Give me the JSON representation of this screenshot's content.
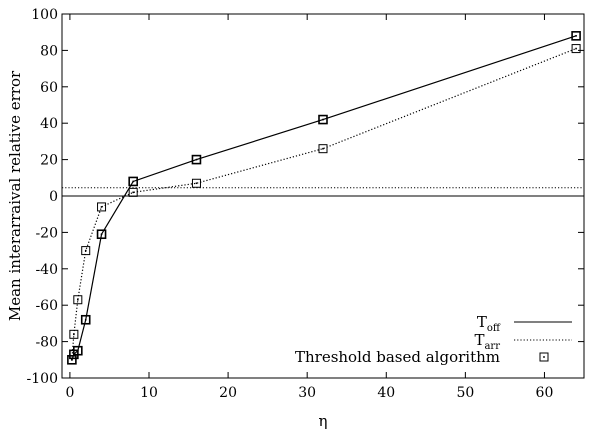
{
  "chart_data": {
    "type": "line",
    "xlabel": "η",
    "ylabel": "Mean interarraival relative error",
    "xlim": [
      -1,
      65
    ],
    "ylim": [
      -100,
      100
    ],
    "xticks": [
      0,
      10,
      20,
      30,
      40,
      50,
      60
    ],
    "yticks": [
      -100,
      -80,
      -60,
      -40,
      -20,
      0,
      20,
      40,
      60,
      80,
      100
    ],
    "grid": false,
    "legend_position": "bottom-right",
    "legend": [
      {
        "name": "T",
        "sub": "off",
        "style": "solid"
      },
      {
        "name": "T",
        "sub": "arr",
        "style": "dotted"
      },
      {
        "name": "Threshold based algorithm",
        "style": "marker"
      }
    ],
    "series": [
      {
        "name": "T_off",
        "style": "solid",
        "x": [
          0.25,
          0.5,
          1,
          2,
          4,
          8,
          16,
          32,
          64
        ],
        "y": [
          -90,
          -87,
          -85,
          -68,
          -21,
          8,
          20,
          42,
          88
        ]
      },
      {
        "name": "T_arr",
        "style": "dotted",
        "x": [
          0.25,
          0.5,
          1,
          2,
          4,
          8,
          16,
          32,
          64
        ],
        "y": [
          -90,
          -76,
          -57,
          -30,
          -6,
          2,
          7,
          26,
          81
        ]
      }
    ],
    "reference_lines": [
      {
        "y": 0,
        "style": "solid"
      },
      {
        "y": 4.5,
        "style": "dotted"
      }
    ]
  }
}
